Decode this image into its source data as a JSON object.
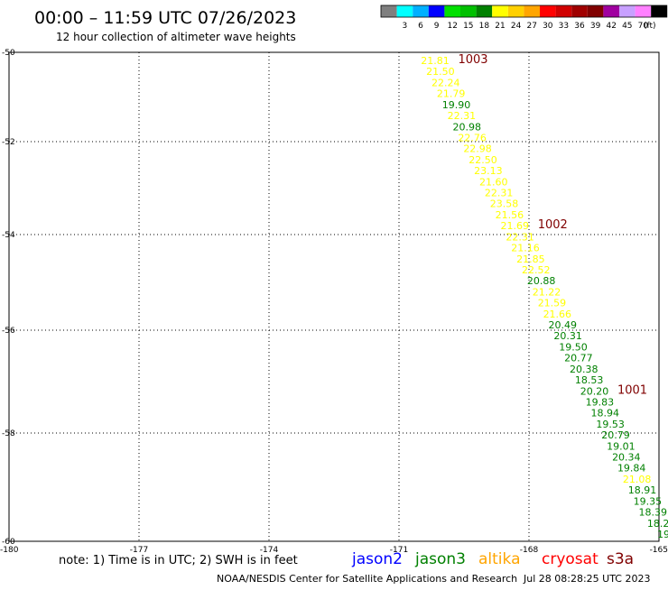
{
  "header": {
    "title": "00:00 – 11:59 UTC 07/26/2023",
    "subtitle": "12 hour collection of altimeter wave heights"
  },
  "legend": {
    "unit": "(ft)",
    "swatches": [
      {
        "label": "",
        "color": "#7f7f7f"
      },
      {
        "label": "3",
        "color": "#00ffff"
      },
      {
        "label": "6",
        "color": "#00b0ff"
      },
      {
        "label": "9",
        "color": "#0000ff"
      },
      {
        "label": "12",
        "color": "#00e000"
      },
      {
        "label": "15",
        "color": "#00c000"
      },
      {
        "label": "18",
        "color": "#008000"
      },
      {
        "label": "21",
        "color": "#ffff00"
      },
      {
        "label": "24",
        "color": "#ffd000"
      },
      {
        "label": "27",
        "color": "#ffa500"
      },
      {
        "label": "30",
        "color": "#ff0000"
      },
      {
        "label": "33",
        "color": "#d00000"
      },
      {
        "label": "36",
        "color": "#a00000"
      },
      {
        "label": "39",
        "color": "#800000"
      },
      {
        "label": "42",
        "color": "#a000a0"
      },
      {
        "label": "45",
        "color": "#c8a0ff"
      },
      {
        "label": "70",
        "color": "#ff80ff"
      },
      {
        "label": "",
        "color": "#000000"
      }
    ]
  },
  "map": {
    "lat_ticks": [
      "-50",
      "-52",
      "-54",
      "-56",
      "-58",
      "-60"
    ],
    "lon_ticks": [
      "-180",
      "-177",
      "-174",
      "-171",
      "-168",
      "-165"
    ]
  },
  "chart_data": {
    "type": "scatter",
    "description_of_axes": "",
    "xlim": [
      -180,
      -165
    ],
    "ylim": [
      -60,
      -50
    ],
    "colors": {
      "yellow": "#ffff00",
      "green": "#008000",
      "time": "#800000"
    },
    "series": [
      {
        "v": "21.81",
        "c": "yellow"
      },
      {
        "v": "21.50",
        "c": "yellow"
      },
      {
        "v": "22.24",
        "c": "yellow"
      },
      {
        "v": "21.79",
        "c": "yellow"
      },
      {
        "v": "19.90",
        "c": "green"
      },
      {
        "v": "22.31",
        "c": "yellow"
      },
      {
        "v": "20.98",
        "c": "green"
      },
      {
        "v": "22.76",
        "c": "yellow"
      },
      {
        "v": "22.98",
        "c": "yellow"
      },
      {
        "v": "22.50",
        "c": "yellow"
      },
      {
        "v": "23.13",
        "c": "yellow"
      },
      {
        "v": "21.60",
        "c": "yellow"
      },
      {
        "v": "22.31",
        "c": "yellow"
      },
      {
        "v": "23.58",
        "c": "yellow"
      },
      {
        "v": "21.56",
        "c": "yellow"
      },
      {
        "v": "21.69",
        "c": "yellow"
      },
      {
        "v": "22.31",
        "c": "yellow"
      },
      {
        "v": "21.16",
        "c": "yellow"
      },
      {
        "v": "21.85",
        "c": "yellow"
      },
      {
        "v": "22.52",
        "c": "yellow"
      },
      {
        "v": "20.88",
        "c": "green"
      },
      {
        "v": "21.22",
        "c": "yellow"
      },
      {
        "v": "21.59",
        "c": "yellow"
      },
      {
        "v": "21.66",
        "c": "yellow"
      },
      {
        "v": "20.49",
        "c": "green"
      },
      {
        "v": "20.31",
        "c": "green"
      },
      {
        "v": "19.50",
        "c": "green"
      },
      {
        "v": "20.77",
        "c": "green"
      },
      {
        "v": "20.38",
        "c": "green"
      },
      {
        "v": "18.53",
        "c": "green"
      },
      {
        "v": "20.20",
        "c": "green"
      },
      {
        "v": "19.83",
        "c": "green"
      },
      {
        "v": "18.94",
        "c": "green"
      },
      {
        "v": "19.53",
        "c": "green"
      },
      {
        "v": "20.79",
        "c": "green"
      },
      {
        "v": "19.01",
        "c": "green"
      },
      {
        "v": "20.34",
        "c": "green"
      },
      {
        "v": "19.84",
        "c": "green"
      },
      {
        "v": "21.08",
        "c": "yellow"
      },
      {
        "v": "18.91",
        "c": "green"
      },
      {
        "v": "19.35",
        "c": "green"
      },
      {
        "v": "18.39",
        "c": "green"
      },
      {
        "v": "18.2",
        "c": "green"
      },
      {
        "v": "19",
        "c": "green"
      }
    ],
    "time_labels": [
      {
        "t": "1003",
        "after_index": 0
      },
      {
        "t": "1002",
        "after_index": 15
      },
      {
        "t": "1001",
        "after_index": 30
      }
    ]
  },
  "footer": {
    "note": "note: 1) Time is in UTC; 2) SWH is in feet",
    "satellites": [
      {
        "name": "jason2",
        "color": "#0000ff"
      },
      {
        "name": "jason3",
        "color": "#008000"
      },
      {
        "name": "altika",
        "color": "#ffa500"
      },
      {
        "name": "cryosat",
        "color": "#ff0000"
      },
      {
        "name": "s3a",
        "color": "#800000"
      }
    ],
    "credit": "NOAA/NESDIS Center for Satellite Applications and Research",
    "timestamp": "Jul 28 08:28:25 UTC 2023"
  }
}
